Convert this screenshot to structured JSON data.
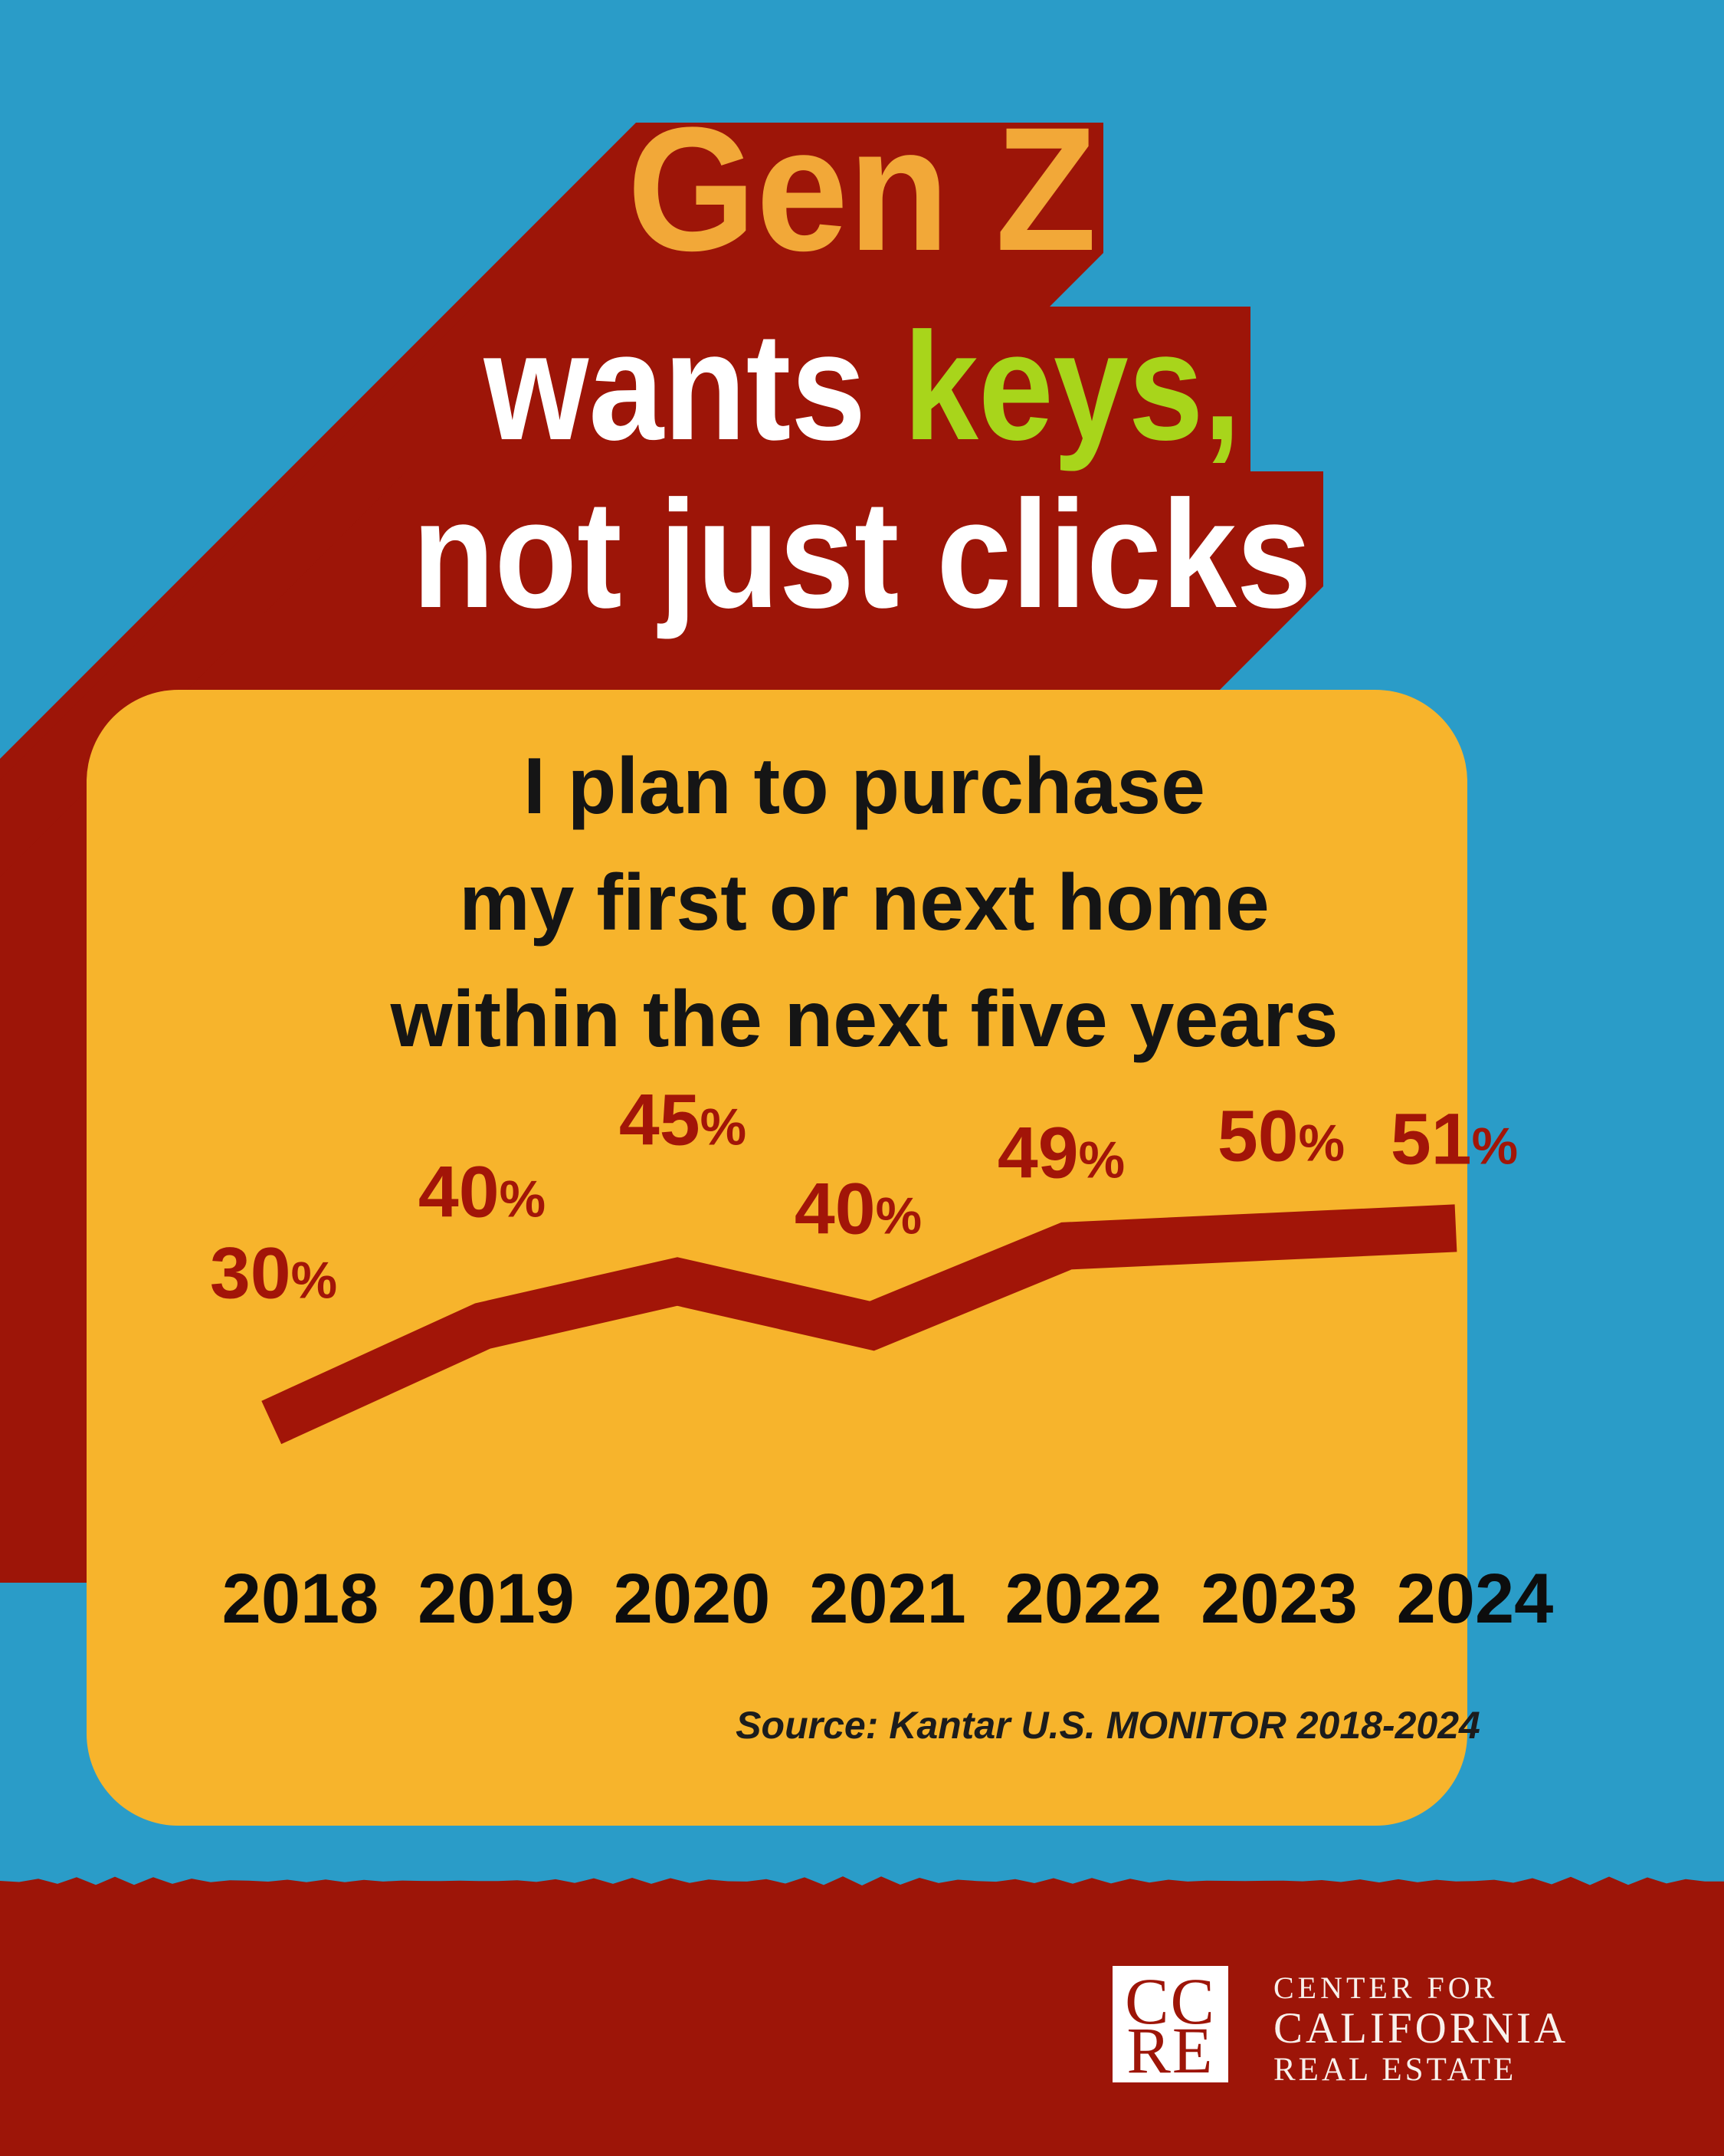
{
  "title": {
    "line1": "Gen Z",
    "line2_part1": "wants ",
    "line2_part2": "keys,",
    "line3": "not just clicks"
  },
  "card": {
    "heading_line1": "I plan to purchase",
    "heading_line2": "my first or next home",
    "heading_line3": "within the next five years",
    "source_note": "Source: Kantar U.S. MONITOR 2018-2024"
  },
  "chart_data": {
    "type": "line",
    "title": "I plan to purchase my first or next home within the next five years",
    "categories": [
      "2018",
      "2019",
      "2020",
      "2021",
      "2022",
      "2023",
      "2024"
    ],
    "values": [
      30,
      40,
      45,
      40,
      49,
      50,
      51
    ],
    "value_labels": [
      "30%",
      "40%",
      "45%",
      "40%",
      "49%",
      "50%",
      "51%"
    ],
    "unit": "%",
    "ylim": [
      25,
      55
    ],
    "grid": false,
    "legend": false,
    "xlabel": "",
    "ylabel": ""
  },
  "footer": {
    "logo_top": "CC",
    "logo_bottom": "RE",
    "org_line1": "CENTER FOR",
    "org_line2": "CALIFORNIA",
    "org_line3": "REAL ESTATE"
  },
  "colors": {
    "background_blue": "#2A9CC8",
    "shadow_red": "#9D1508",
    "footer_red": "#9D1508",
    "line_red": "#A21508",
    "card_yellow": "#F7B42C",
    "title_orange": "#F2A838",
    "keys_green": "#A8D51B",
    "title_white": "#FFFFFF",
    "heading_black": "#151515",
    "year_black": "#0D0D0D",
    "source_black": "#1C1C1C",
    "footer_text": "#F8F1EC"
  }
}
